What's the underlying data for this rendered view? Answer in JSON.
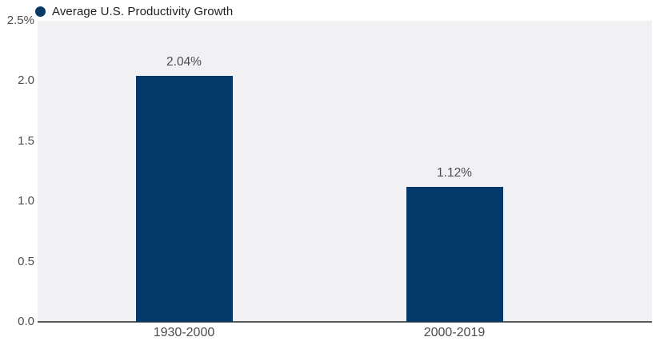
{
  "legend": {
    "label": "Average U.S. Productivity Growth",
    "marker": "filled-circle"
  },
  "chart_data": {
    "type": "bar",
    "title": "",
    "xlabel": "",
    "ylabel": "",
    "categories": [
      "1930-2000",
      "2000-2019"
    ],
    "values": [
      2.04,
      1.12
    ],
    "value_labels": [
      "2.04%",
      "1.12%"
    ],
    "ylim": [
      0,
      2.5
    ],
    "yticks": [
      {
        "value": 0.0,
        "label": "0.0"
      },
      {
        "value": 0.5,
        "label": "0.5"
      },
      {
        "value": 1.0,
        "label": "1.0"
      },
      {
        "value": 1.5,
        "label": "1.5"
      },
      {
        "value": 2.0,
        "label": "2.0"
      },
      {
        "value": 2.5,
        "label": "2.5%"
      }
    ],
    "grid": false,
    "legend_entries": [
      "Average U.S. Productivity Growth"
    ],
    "legend_position": "top-left",
    "colors": {
      "bar": "#03386a",
      "legend_dot": "#0a3a66",
      "plot_bg": "#f1f1f4",
      "axis_line": "#58595b",
      "tick_text": "#4b4c4e",
      "value_text": "#4b4c4e",
      "legend_text": "#222222"
    }
  }
}
